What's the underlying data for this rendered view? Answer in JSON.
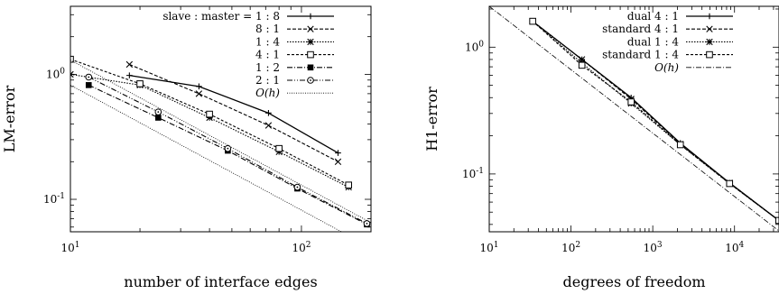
{
  "chart_data": [
    {
      "type": "line",
      "xscale": "log",
      "yscale": "log",
      "xlim": [
        10,
        200
      ],
      "ylim": [
        0.055,
        3.5
      ],
      "xlabel": "number of interface edges",
      "ylabel": "LM-error",
      "xticks": [
        {
          "value": 10,
          "base": "10",
          "exp": "1"
        },
        {
          "value": 100,
          "base": "10",
          "exp": "2"
        }
      ],
      "yticks": [
        {
          "value": 0.1,
          "base": "10",
          "exp": "-1"
        },
        {
          "value": 1,
          "base": "10",
          "exp": "0"
        }
      ],
      "legend_position": "top-right",
      "series": [
        {
          "name": "slave : master = 1 : 8",
          "dash": "",
          "marker": "plus",
          "x": [
            18,
            36,
            72,
            144
          ],
          "y": [
            0.98,
            0.8,
            0.49,
            0.235
          ]
        },
        {
          "name": "8 : 1",
          "dash": "4,2",
          "marker": "cross",
          "x": [
            18,
            36,
            72,
            144
          ],
          "y": [
            1.2,
            0.7,
            0.39,
            0.2
          ]
        },
        {
          "name": "1 : 4",
          "dash": "1.5,1.5",
          "marker": "star",
          "x": [
            10,
            20,
            40,
            80,
            160
          ],
          "y": [
            1.0,
            0.82,
            0.45,
            0.24,
            0.125
          ]
        },
        {
          "name": "4 : 1",
          "dash": "3,2",
          "marker": "square-open",
          "x": [
            10,
            20,
            40,
            80,
            160
          ],
          "y": [
            1.32,
            0.84,
            0.48,
            0.255,
            0.13
          ]
        },
        {
          "name": "1 : 2",
          "dash": "6,2,1,2",
          "marker": "square-filled",
          "x": [
            12,
            24,
            48,
            96,
            192
          ],
          "y": [
            0.82,
            0.45,
            0.245,
            0.122,
            0.063
          ]
        },
        {
          "name": "2 : 1",
          "dash": "6,2,1,2,1,2",
          "marker": "circle-dot",
          "x": [
            12,
            24,
            48,
            96,
            192
          ],
          "y": [
            0.95,
            0.5,
            0.255,
            0.125,
            0.064
          ]
        },
        {
          "name": "O(h)",
          "dash": "1,1.5",
          "marker": "none",
          "x": [
            10,
            160
          ],
          "y": [
            0.82,
            0.0512
          ]
        },
        {
          "name": "",
          "dash": "1,1.5",
          "marker": "none",
          "x": [
            10,
            200
          ],
          "y": [
            1.3,
            0.065
          ]
        }
      ]
    },
    {
      "type": "line",
      "xscale": "log",
      "yscale": "log",
      "xlim": [
        10,
        35000
      ],
      "ylim": [
        0.035,
        2.1
      ],
      "xlabel": "degrees of freedom",
      "ylabel": "H1-error",
      "xticks": [
        {
          "value": 10,
          "base": "10",
          "exp": "1"
        },
        {
          "value": 100,
          "base": "10",
          "exp": "2"
        },
        {
          "value": 1000,
          "base": "10",
          "exp": "3"
        },
        {
          "value": 10000,
          "base": "10",
          "exp": "4"
        }
      ],
      "yticks": [
        {
          "value": 0.1,
          "base": "10",
          "exp": "-1"
        },
        {
          "value": 1,
          "base": "10",
          "exp": "0"
        }
      ],
      "legend_position": "top-right",
      "series": [
        {
          "name": "dual 4 : 1",
          "dash": "",
          "marker": "plus",
          "x": [
            34,
            136,
            544,
            2176,
            8704,
            34816
          ],
          "y": [
            1.6,
            0.8,
            0.4,
            0.175,
            0.085,
            0.043
          ]
        },
        {
          "name": "standard 4 : 1",
          "dash": "4,2",
          "marker": "cross",
          "x": [
            34,
            136,
            544,
            2176,
            8704,
            34816
          ],
          "y": [
            1.6,
            0.8,
            0.39,
            0.172,
            0.085,
            0.043
          ]
        },
        {
          "name": "dual 1 : 4",
          "dash": "1.5,1.5",
          "marker": "star",
          "x": [
            34,
            136,
            544,
            2176,
            8704,
            34816
          ],
          "y": [
            1.6,
            0.75,
            0.36,
            0.17,
            0.084,
            0.043
          ]
        },
        {
          "name": "standard 1 : 4",
          "dash": "3,2",
          "marker": "square-open",
          "x": [
            34,
            136,
            544,
            2176,
            8704,
            34816
          ],
          "y": [
            1.6,
            0.72,
            0.37,
            0.17,
            0.084,
            0.043
          ]
        },
        {
          "name": "O(h)",
          "dash": "6,2,1,2",
          "marker": "none",
          "x": [
            10,
            35000
          ],
          "y": [
            2.1,
            0.0355
          ]
        }
      ]
    }
  ]
}
